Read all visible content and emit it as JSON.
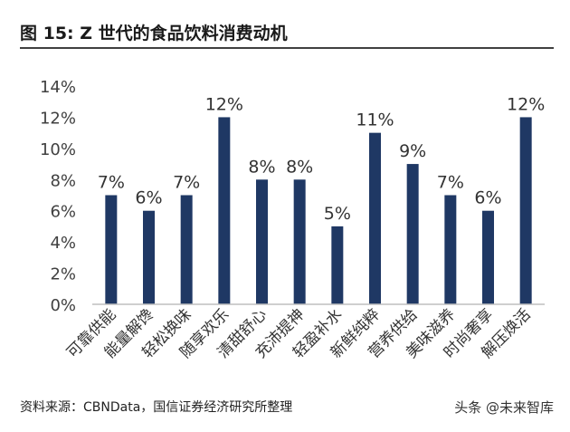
{
  "title": "图 15:  Z 世代的食品饮料消费动机",
  "source": "资料来源：CBNData，国信证券经济研究所整理",
  "watermark": "头条 @未来智库",
  "colors": {
    "bar": "#1f3864",
    "axis": "#bfbfbf",
    "text": "#404040"
  },
  "chart_data": {
    "type": "bar",
    "title": "Z 世代的食品饮料消费动机",
    "xlabel": "",
    "ylabel": "",
    "ylim": [
      0,
      14
    ],
    "yticks": [
      0,
      2,
      4,
      6,
      8,
      10,
      12,
      14
    ],
    "ytick_labels": [
      "0%",
      "2%",
      "4%",
      "6%",
      "8%",
      "10%",
      "12%",
      "14%"
    ],
    "categories": [
      "可靠供能",
      "能量解馋",
      "轻松换味",
      "随享欢乐",
      "清甜舒心",
      "充沛提神",
      "轻盈补水",
      "新鲜纯粹",
      "营养供给",
      "美味滋养",
      "时尚奢享",
      "解压焕活"
    ],
    "values": [
      7,
      6,
      7,
      12,
      8,
      8,
      5,
      11,
      9,
      7,
      6,
      12
    ],
    "value_labels": [
      "7%",
      "6%",
      "7%",
      "12%",
      "8%",
      "8%",
      "5%",
      "11%",
      "9%",
      "7%",
      "6%",
      "12%"
    ],
    "grid": false,
    "legend": "none"
  }
}
